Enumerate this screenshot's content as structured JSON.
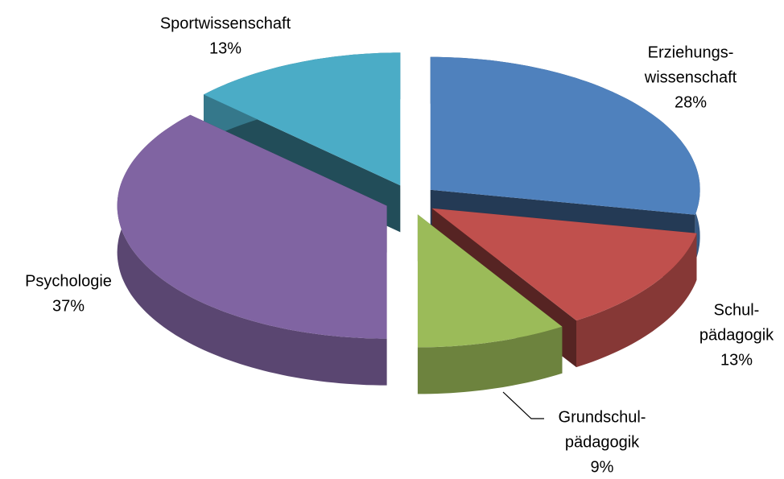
{
  "chart_data": {
    "type": "pie3d",
    "categories": [
      [
        "Erziehungs-",
        "wissenschaft"
      ],
      [
        "Schul-",
        "pädagogik"
      ],
      [
        "Grundschul-",
        "pädagogik"
      ],
      [
        "Psychologie"
      ],
      [
        "Sportwissenschaft"
      ]
    ],
    "values": [
      28,
      13,
      9,
      37,
      13
    ],
    "value_labels": [
      "28%",
      "13%",
      "9%",
      "37%",
      "13%"
    ],
    "colors": [
      "#4f81bd",
      "#c0504d",
      "#9bbb59",
      "#8064a2",
      "#4bacc6"
    ]
  }
}
